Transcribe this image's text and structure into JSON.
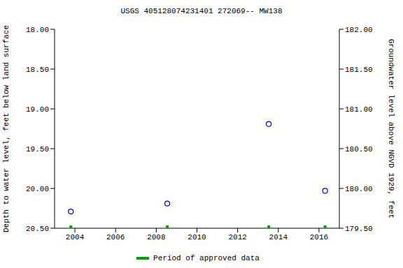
{
  "chart_data": {
    "type": "scatter",
    "title": "USGS 405128074231401 272069-- MW138",
    "ylabel": "Depth to water level, feet below land surface",
    "y2label": "Groundwater level above NGVD 1929, feet",
    "x": [
      2003.8,
      2008.54,
      2013.53,
      2016.3
    ],
    "xlim": [
      2003,
      2017
    ],
    "xticks": [
      2004,
      2006,
      2008,
      2010,
      2012,
      2014,
      2016
    ],
    "ylim": [
      20.5,
      18
    ],
    "yticks": [
      {
        "value": 18,
        "label": "18.00"
      },
      {
        "value": 18.5,
        "label": "18.50"
      },
      {
        "value": 19,
        "label": "19.00"
      },
      {
        "value": 19.5,
        "label": "19.50"
      },
      {
        "value": 20,
        "label": "20.00"
      },
      {
        "value": 20.5,
        "label": "20.50"
      }
    ],
    "y2lim": [
      179.5,
      182
    ],
    "y2ticks": [
      {
        "value": 179.5,
        "label": "179.50"
      },
      {
        "value": 180,
        "label": "180.00"
      },
      {
        "value": 180.5,
        "label": "180.50"
      },
      {
        "value": 181,
        "label": "181.00"
      },
      {
        "value": 181.5,
        "label": "181.50"
      },
      {
        "value": 182,
        "label": "182.00"
      }
    ],
    "grid": false,
    "series": [
      {
        "color": "#0000cc",
        "marker": "circle",
        "values": [
          20.29,
          20.19,
          19.19,
          20.03
        ]
      },
      {
        "name": "Period of approved data",
        "color": "#00a000",
        "marker": "square",
        "values": [
          20.5,
          20.5,
          20.5,
          20.5
        ]
      }
    ]
  }
}
